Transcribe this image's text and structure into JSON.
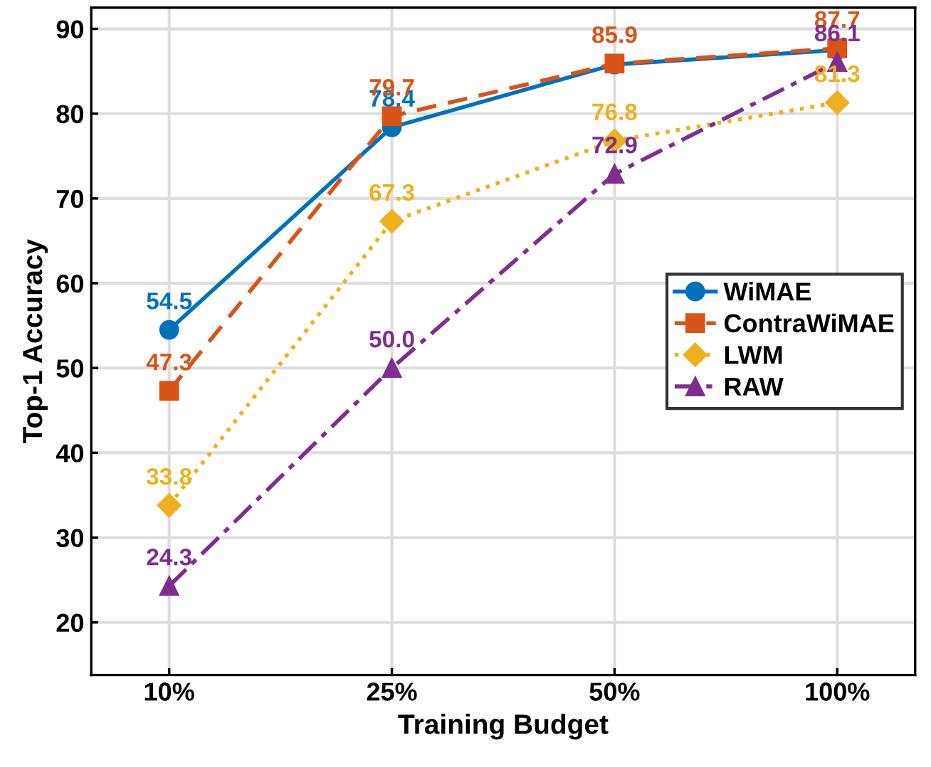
{
  "chart_data": {
    "type": "line",
    "xlabel": "Training Budget",
    "ylabel": "Top-1 Accuracy",
    "categories": [
      "10%",
      "25%",
      "50%",
      "100%"
    ],
    "series": [
      {
        "name": "WiMAE",
        "color": "#0072bd",
        "values": [
          54.5,
          78.4,
          85.8,
          87.5
        ],
        "value_labels": [
          "54.5",
          "78.4",
          null,
          null
        ],
        "marker": "circle",
        "line_style": "solid"
      },
      {
        "name": "ContraWiMAE",
        "color": "#d95319",
        "values": [
          47.3,
          79.7,
          85.9,
          87.7
        ],
        "value_labels": [
          "47.3",
          "79.7",
          "85.9",
          "87.7"
        ],
        "marker": "square",
        "line_style": "dashed"
      },
      {
        "name": "LWM",
        "color": "#edb120",
        "values": [
          33.8,
          67.3,
          76.8,
          81.3
        ],
        "value_labels": [
          "33.8",
          "67.3",
          "76.8",
          "81.3"
        ],
        "marker": "diamond",
        "line_style": "dotted"
      },
      {
        "name": "RAW",
        "color": "#7e2f8e",
        "values": [
          24.3,
          50.0,
          72.9,
          86.1
        ],
        "value_labels": [
          "24.3",
          "50.0",
          "72.9",
          "86.1"
        ],
        "marker": "triangle",
        "line_style": "dashdot"
      }
    ],
    "ylim": [
      13.8,
      92.5
    ],
    "yticks": [
      20,
      30,
      40,
      50,
      60,
      70,
      80,
      90
    ],
    "grid": true,
    "legend": "right"
  }
}
